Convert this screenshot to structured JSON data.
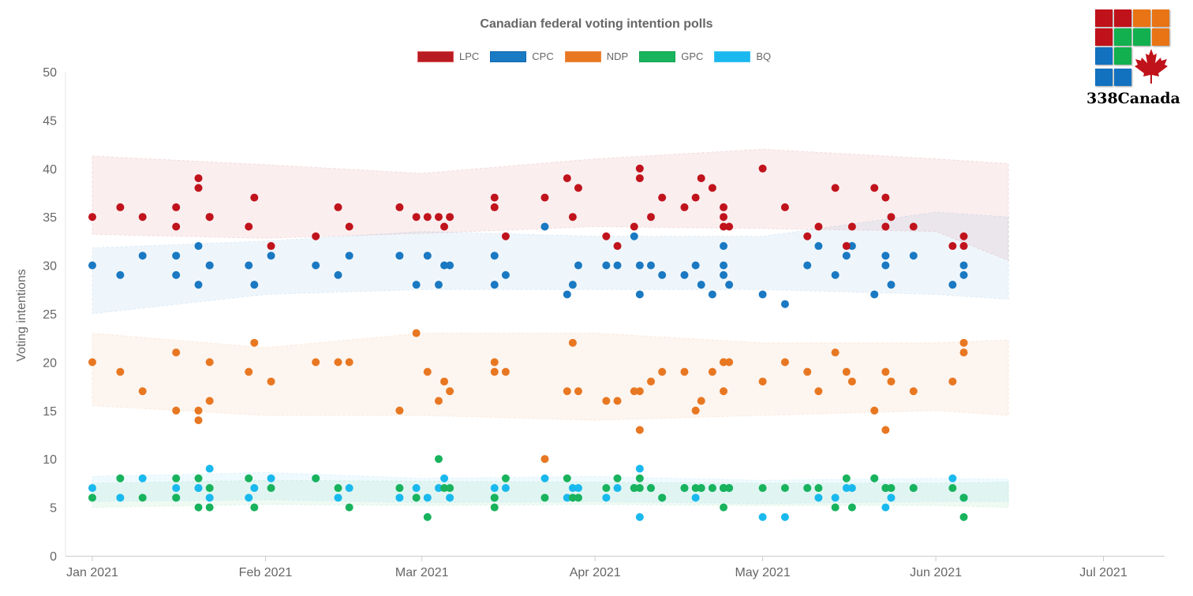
{
  "chart_data": {
    "type": "scatter",
    "title": "Canadian federal voting intention polls",
    "ylabel": "Voting intentions",
    "xlabel": "",
    "ylim": [
      0,
      50
    ],
    "yticks": [
      "0",
      "5",
      "10",
      "15",
      "20",
      "25",
      "30",
      "35",
      "40",
      "45",
      "50"
    ],
    "xrange": [
      "01-01",
      "07-15"
    ],
    "xticks": [
      {
        "date": "01-01",
        "label": "Jan 2021"
      },
      {
        "date": "02-01",
        "label": "Feb 2021"
      },
      {
        "date": "03-01",
        "label": "Mar 2021"
      },
      {
        "date": "04-01",
        "label": "Apr 2021"
      },
      {
        "date": "05-01",
        "label": "May 2021"
      },
      {
        "date": "06-01",
        "label": "Jun 2021"
      },
      {
        "date": "07-01",
        "label": "Jul 2021"
      }
    ],
    "legend_position": "top-center",
    "series": [
      {
        "name": "LPC",
        "color": "#c0131c"
      },
      {
        "name": "CPC",
        "color": "#1a79c2"
      },
      {
        "name": "NDP",
        "color": "#e87722"
      },
      {
        "name": "GPC",
        "color": "#18b35c"
      },
      {
        "name": "BQ",
        "color": "#19b9ee"
      }
    ],
    "poll_columns": [
      "date",
      "LPC",
      "CPC",
      "NDP",
      "GPC",
      "BQ"
    ],
    "polls": [
      [
        "01-01",
        35,
        30,
        20,
        6,
        7
      ],
      [
        "01-06",
        36,
        29,
        19,
        8,
        6
      ],
      [
        "01-10",
        35,
        31,
        17,
        6,
        8
      ],
      [
        "01-16",
        36,
        31,
        21,
        8,
        7
      ],
      [
        "01-16",
        34,
        29,
        15,
        6,
        6
      ],
      [
        "01-20",
        39,
        32,
        15,
        8,
        7
      ],
      [
        "01-20",
        38,
        28,
        14,
        5,
        7
      ],
      [
        "01-22",
        35,
        30,
        20,
        7,
        9
      ],
      [
        "01-22",
        35,
        30,
        16,
        5,
        6
      ],
      [
        "01-29",
        34,
        30,
        19,
        8,
        6
      ],
      [
        "01-30",
        37,
        28,
        22,
        5,
        7
      ],
      [
        "02-02",
        32,
        31,
        18,
        7,
        8
      ],
      [
        "02-10",
        33,
        30,
        20,
        8,
        8
      ],
      [
        "02-14",
        36,
        29,
        20,
        7,
        6
      ],
      [
        "02-16",
        34,
        31,
        20,
        5,
        7
      ],
      [
        "02-25",
        36,
        31,
        15,
        7,
        6
      ],
      [
        "02-28",
        35,
        28,
        23,
        6,
        7
      ],
      [
        "03-02",
        35,
        31,
        19,
        4,
        6
      ],
      [
        "03-04",
        35,
        28,
        16,
        10,
        7
      ],
      [
        "03-05",
        34,
        30,
        18,
        7,
        8
      ],
      [
        "03-06",
        35,
        30,
        17,
        7,
        6
      ],
      [
        "03-14",
        37,
        31,
        20,
        6,
        7
      ],
      [
        "03-14",
        36,
        28,
        19,
        5,
        6
      ],
      [
        "03-16",
        33,
        29,
        19,
        8,
        7
      ],
      [
        "03-23",
        37,
        34,
        10,
        6,
        8
      ],
      [
        "03-27",
        39,
        27,
        17,
        8,
        6
      ],
      [
        "03-28",
        35,
        28,
        22,
        6,
        7
      ],
      [
        "03-29",
        38,
        30,
        17,
        6,
        7
      ],
      [
        "04-03",
        33,
        30,
        16,
        7,
        6
      ],
      [
        "04-05",
        32,
        30,
        16,
        8,
        7
      ],
      [
        "04-08",
        34,
        33,
        17,
        7,
        7
      ],
      [
        "04-09",
        40,
        30,
        17,
        8,
        9
      ],
      [
        "04-09",
        39,
        27,
        13,
        7,
        4
      ],
      [
        "04-11",
        35,
        30,
        18,
        7,
        7
      ],
      [
        "04-13",
        37,
        29,
        19,
        6,
        6
      ],
      [
        "04-17",
        36,
        29,
        19,
        7,
        7
      ],
      [
        "04-19",
        37,
        30,
        15,
        7,
        6
      ],
      [
        "04-20",
        39,
        28,
        16,
        7,
        7
      ],
      [
        "04-22",
        38,
        27,
        19,
        7,
        7
      ],
      [
        "04-24",
        36,
        32,
        20,
        7,
        7
      ],
      [
        "04-24",
        35,
        30,
        17,
        5,
        7
      ],
      [
        "04-24",
        34,
        29,
        20,
        7,
        7
      ],
      [
        "04-25",
        34,
        28,
        20,
        7,
        7
      ],
      [
        "05-01",
        40,
        27,
        18,
        7,
        4
      ],
      [
        "05-05",
        36,
        26,
        20,
        7,
        4
      ],
      [
        "05-09",
        33,
        30,
        19,
        7,
        7
      ],
      [
        "05-11",
        34,
        32,
        17,
        7,
        6
      ],
      [
        "05-14",
        38,
        29,
        21,
        5,
        6
      ],
      [
        "05-16",
        32,
        31,
        19,
        8,
        7
      ],
      [
        "05-17",
        34,
        32,
        18,
        5,
        7
      ],
      [
        "05-21",
        38,
        27,
        15,
        8,
        8
      ],
      [
        "05-23",
        37,
        31,
        19,
        7,
        5
      ],
      [
        "05-23",
        34,
        30,
        13,
        7,
        7
      ],
      [
        "05-24",
        35,
        28,
        18,
        7,
        6
      ],
      [
        "05-28",
        34,
        31,
        17,
        7,
        7
      ],
      [
        "06-04",
        32,
        28,
        18,
        7,
        8
      ],
      [
        "06-06",
        33,
        30,
        22,
        6,
        6
      ],
      [
        "06-06",
        32,
        29,
        21,
        4,
        6
      ]
    ],
    "bands": {
      "LPC": [
        [
          "01-01",
          33.2,
          41.3
        ],
        [
          "02-01",
          32.8,
          40.4
        ],
        [
          "03-01",
          33.3,
          39.5
        ],
        [
          "04-01",
          34,
          41
        ],
        [
          "05-01",
          33.8,
          42
        ],
        [
          "06-01",
          33.5,
          41
        ],
        [
          "06-14",
          30.5,
          40.5
        ]
      ],
      "CPC": [
        [
          "01-01",
          25,
          31.8
        ],
        [
          "02-01",
          27,
          32.5
        ],
        [
          "03-01",
          27.5,
          33.5
        ],
        [
          "04-01",
          27.5,
          33
        ],
        [
          "05-01",
          27.5,
          33
        ],
        [
          "06-01",
          27,
          35.5
        ],
        [
          "06-14",
          26.5,
          35
        ]
      ],
      "NDP": [
        [
          "01-01",
          15.5,
          23
        ],
        [
          "02-01",
          14.5,
          21.5
        ],
        [
          "03-01",
          14.5,
          23
        ],
        [
          "04-01",
          14,
          23
        ],
        [
          "05-01",
          14.5,
          22
        ],
        [
          "06-01",
          15,
          22
        ],
        [
          "06-14",
          14.5,
          22.3
        ]
      ],
      "GPC": [
        [
          "01-01",
          5,
          7.5
        ],
        [
          "02-01",
          5.3,
          7.8
        ],
        [
          "03-01",
          5.2,
          7.7
        ],
        [
          "04-01",
          5.3,
          7.6
        ],
        [
          "05-01",
          5.2,
          7.5
        ],
        [
          "06-01",
          5.2,
          7.5
        ],
        [
          "06-14",
          5,
          7.6
        ]
      ],
      "BQ": [
        [
          "01-01",
          5.6,
          8.2
        ],
        [
          "02-01",
          5.8,
          8.6
        ],
        [
          "03-01",
          5.5,
          8
        ],
        [
          "04-01",
          5.6,
          8.2
        ],
        [
          "05-01",
          5.4,
          7.8
        ],
        [
          "06-01",
          5.6,
          8
        ],
        [
          "06-14",
          5.6,
          7.9
        ]
      ]
    }
  },
  "logo": {
    "text": "338Canada"
  }
}
